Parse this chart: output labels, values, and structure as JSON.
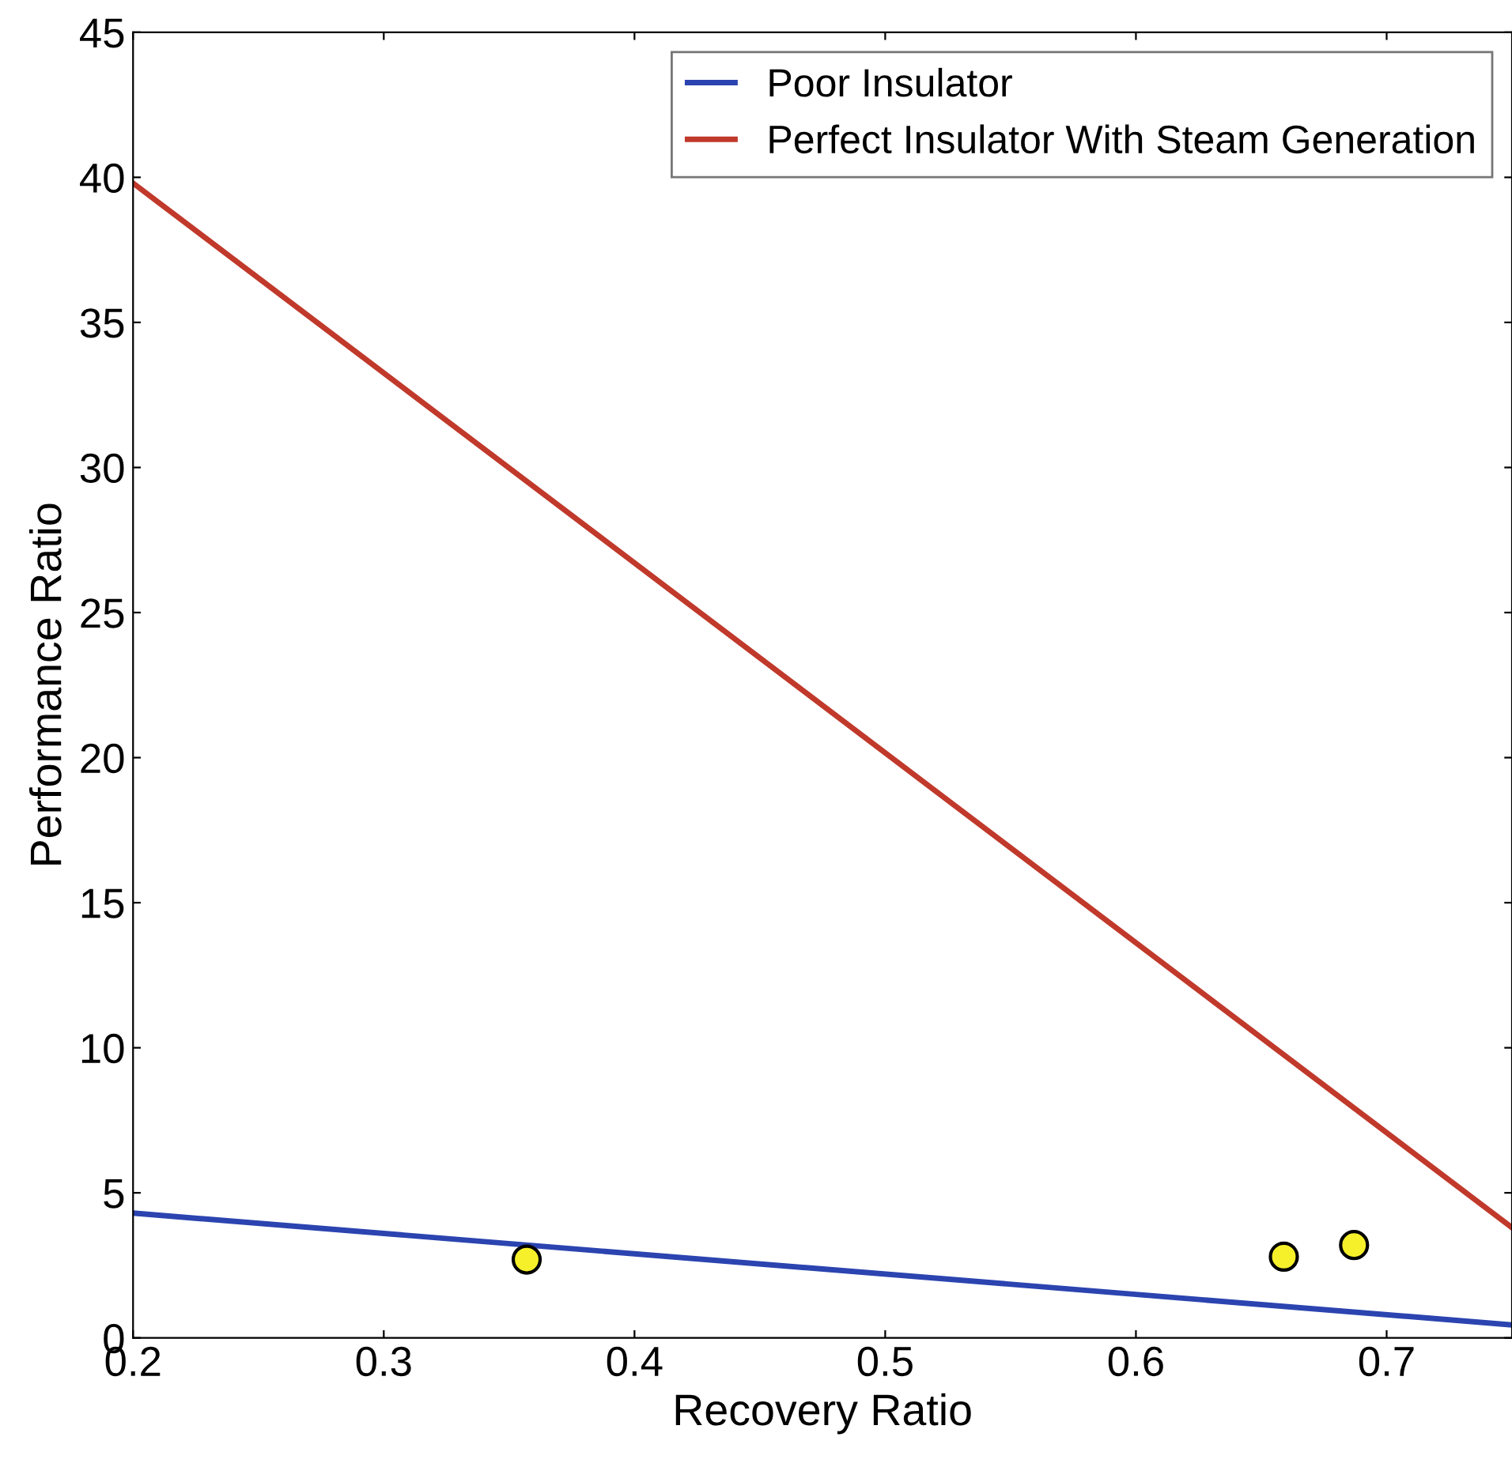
{
  "chart_data": {
    "type": "line",
    "xlabel": "Recovery Ratio",
    "ylabel": "Performance Ratio",
    "xlim": [
      0.2,
      0.75
    ],
    "xticks": [
      0.2,
      0.3,
      0.4,
      0.5,
      0.6,
      0.7
    ],
    "ylim": [
      0,
      45
    ],
    "yticks": [
      0,
      5,
      10,
      15,
      20,
      25,
      30,
      35,
      40,
      45
    ],
    "grid": false,
    "legend": "top right",
    "series": [
      {
        "name": "Poor Insulator",
        "color": "#2b44b0",
        "x": [
          0.2,
          0.75
        ],
        "values": [
          4.3,
          0.45
        ]
      },
      {
        "name": "Perfect Insulator With Steam Generation",
        "color": "#c0392b",
        "x": [
          0.2,
          0.75
        ],
        "values": [
          39.8,
          3.8
        ]
      },
      {
        "type": "scatter",
        "color": "#f5f02a",
        "marker": "circle",
        "x": [
          0.357,
          0.659,
          0.687
        ],
        "values": [
          2.7,
          2.8,
          3.2
        ]
      }
    ]
  }
}
